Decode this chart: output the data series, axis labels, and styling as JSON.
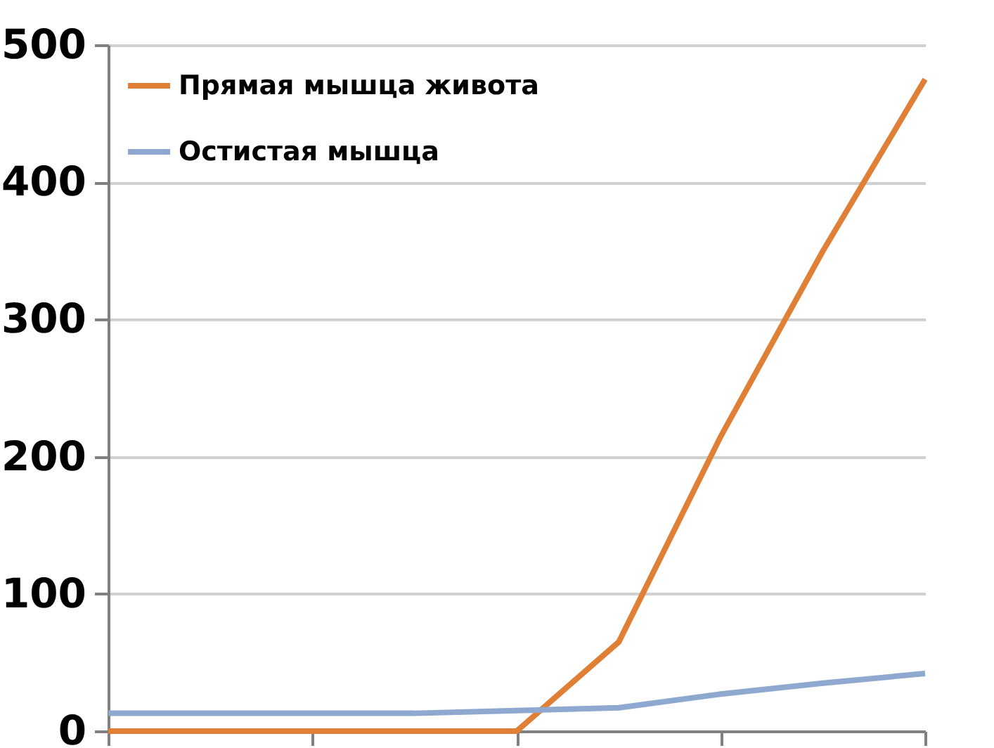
{
  "chart_data": {
    "type": "line",
    "categories": [
      null,
      null,
      null,
      null,
      null,
      null,
      null,
      null,
      null
    ],
    "series": [
      {
        "name": "Прямая мышца живота",
        "color": "#e07f36",
        "values": [
          0,
          0,
          0,
          0,
          0,
          65,
          215,
          350,
          475
        ]
      },
      {
        "name": "Остистая мышца",
        "color": "#8ea8d0",
        "values": [
          13,
          13,
          13,
          13,
          15,
          17,
          27,
          35,
          42
        ]
      }
    ],
    "ylim": [
      0,
      500
    ],
    "yticks": [
      0,
      100,
      200,
      300,
      400,
      500
    ],
    "grid": "y",
    "legend": "top left",
    "tick_labels": "y",
    "marker": "none",
    "line_style": "solid"
  }
}
